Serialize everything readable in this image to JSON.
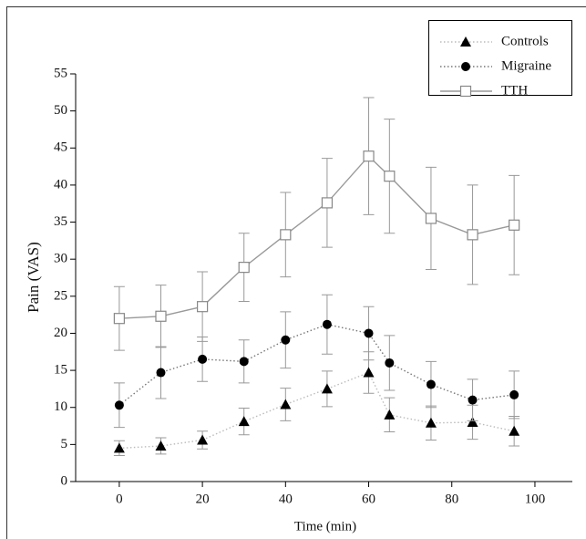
{
  "chart_data": {
    "type": "line",
    "x_label": "Time (min)",
    "y_label": "Pain (VAS)",
    "x": [
      0,
      10,
      20,
      30,
      40,
      50,
      60,
      65,
      75,
      85,
      95
    ],
    "series": [
      {
        "name": "Controls",
        "color": "#000000",
        "line_color": "#bbbbbb",
        "dash": "dotted",
        "marker": "triangle",
        "values": [
          4.5,
          4.8,
          5.6,
          8.1,
          10.4,
          12.5,
          14.7,
          9.0,
          7.9,
          8.0,
          6.8
        ],
        "errors": [
          1.0,
          1.1,
          1.2,
          1.8,
          2.2,
          2.4,
          2.8,
          2.3,
          2.3,
          2.3,
          2.0
        ]
      },
      {
        "name": "Migraine",
        "color": "#000000",
        "line_color": "#777777",
        "dash": "dotted",
        "marker": "circle",
        "values": [
          10.3,
          14.7,
          16.5,
          16.2,
          19.1,
          21.2,
          20.0,
          16.0,
          13.1,
          11.0,
          11.7
        ],
        "errors": [
          3.0,
          3.5,
          3.0,
          2.9,
          3.8,
          4.0,
          3.6,
          3.7,
          3.1,
          2.8,
          3.2
        ]
      },
      {
        "name": "TTH",
        "color": "#888888",
        "line_color": "#999999",
        "dash": "solid",
        "marker": "square",
        "values": [
          22.0,
          22.3,
          23.6,
          28.9,
          33.3,
          37.6,
          43.9,
          41.2,
          35.5,
          33.3,
          34.6
        ],
        "errors": [
          4.3,
          4.2,
          4.7,
          4.6,
          5.7,
          6.0,
          7.9,
          7.7,
          6.9,
          6.7,
          6.7
        ]
      }
    ],
    "xlim": [
      -10.5,
      109
    ],
    "xticks": [
      0,
      20,
      40,
      60,
      80,
      100
    ],
    "ylim": [
      0,
      55
    ],
    "yticks": [
      0,
      5,
      10,
      15,
      20,
      25,
      30,
      35,
      40,
      45,
      50,
      55
    ],
    "legend": "upper right",
    "grid": false
  }
}
